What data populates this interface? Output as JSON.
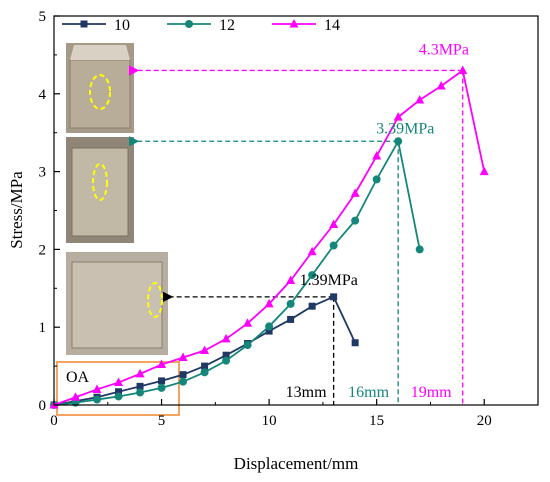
{
  "chart_data": {
    "type": "line",
    "xlabel": "Displacement/mm",
    "ylabel": "Stress/MPa",
    "xlim": [
      0,
      22.5
    ],
    "ylim": [
      0,
      5
    ],
    "xticks": [
      "0",
      "5",
      "10",
      "15",
      "20"
    ],
    "yticks": [
      "0",
      "1",
      "2",
      "3",
      "4",
      "5"
    ],
    "grid": false,
    "legend_position": "top-left",
    "series": [
      {
        "name": "10",
        "color": "#1f3864",
        "marker": "square",
        "x": [
          0,
          1,
          2,
          3,
          4,
          5,
          6,
          7,
          8,
          9,
          10,
          11,
          12,
          13,
          14
        ],
        "y": [
          0,
          0.05,
          0.1,
          0.17,
          0.24,
          0.31,
          0.39,
          0.5,
          0.64,
          0.79,
          0.95,
          1.1,
          1.27,
          1.39,
          0.8
        ]
      },
      {
        "name": "12",
        "color": "#15877a",
        "marker": "circle",
        "x": [
          0,
          1,
          2,
          3,
          4,
          5,
          6,
          7,
          8,
          9,
          10,
          11,
          12,
          13,
          14,
          15,
          16,
          17
        ],
        "y": [
          0,
          0.03,
          0.07,
          0.11,
          0.16,
          0.22,
          0.3,
          0.42,
          0.57,
          0.77,
          1.01,
          1.3,
          1.67,
          2.05,
          2.37,
          2.9,
          3.39,
          2.0
        ]
      },
      {
        "name": "14",
        "color": "#ff00ff",
        "marker": "triangle",
        "x": [
          0,
          1,
          2,
          3,
          4,
          5,
          6,
          7,
          8,
          9,
          10,
          11,
          12,
          13,
          14,
          15,
          16,
          17,
          18,
          19,
          20
        ],
        "y": [
          0,
          0.1,
          0.2,
          0.29,
          0.4,
          0.52,
          0.61,
          0.7,
          0.85,
          1.05,
          1.3,
          1.6,
          1.97,
          2.32,
          2.72,
          3.2,
          3.7,
          3.92,
          4.1,
          4.3,
          3.0
        ]
      }
    ],
    "annotations": [
      {
        "text": "1.39MPa",
        "x": 13,
        "y": 1.39,
        "color": "#000000",
        "disp_label": "13mm"
      },
      {
        "text": "3.39MPa",
        "x": 16,
        "y": 3.39,
        "color": "#15877a",
        "disp_label": "16mm"
      },
      {
        "text": "4.3MPa",
        "x": 19,
        "y": 4.3,
        "color": "#ff00ff",
        "disp_label": "19mm"
      }
    ],
    "region_label": "OA",
    "region_color": "#f4a460"
  }
}
